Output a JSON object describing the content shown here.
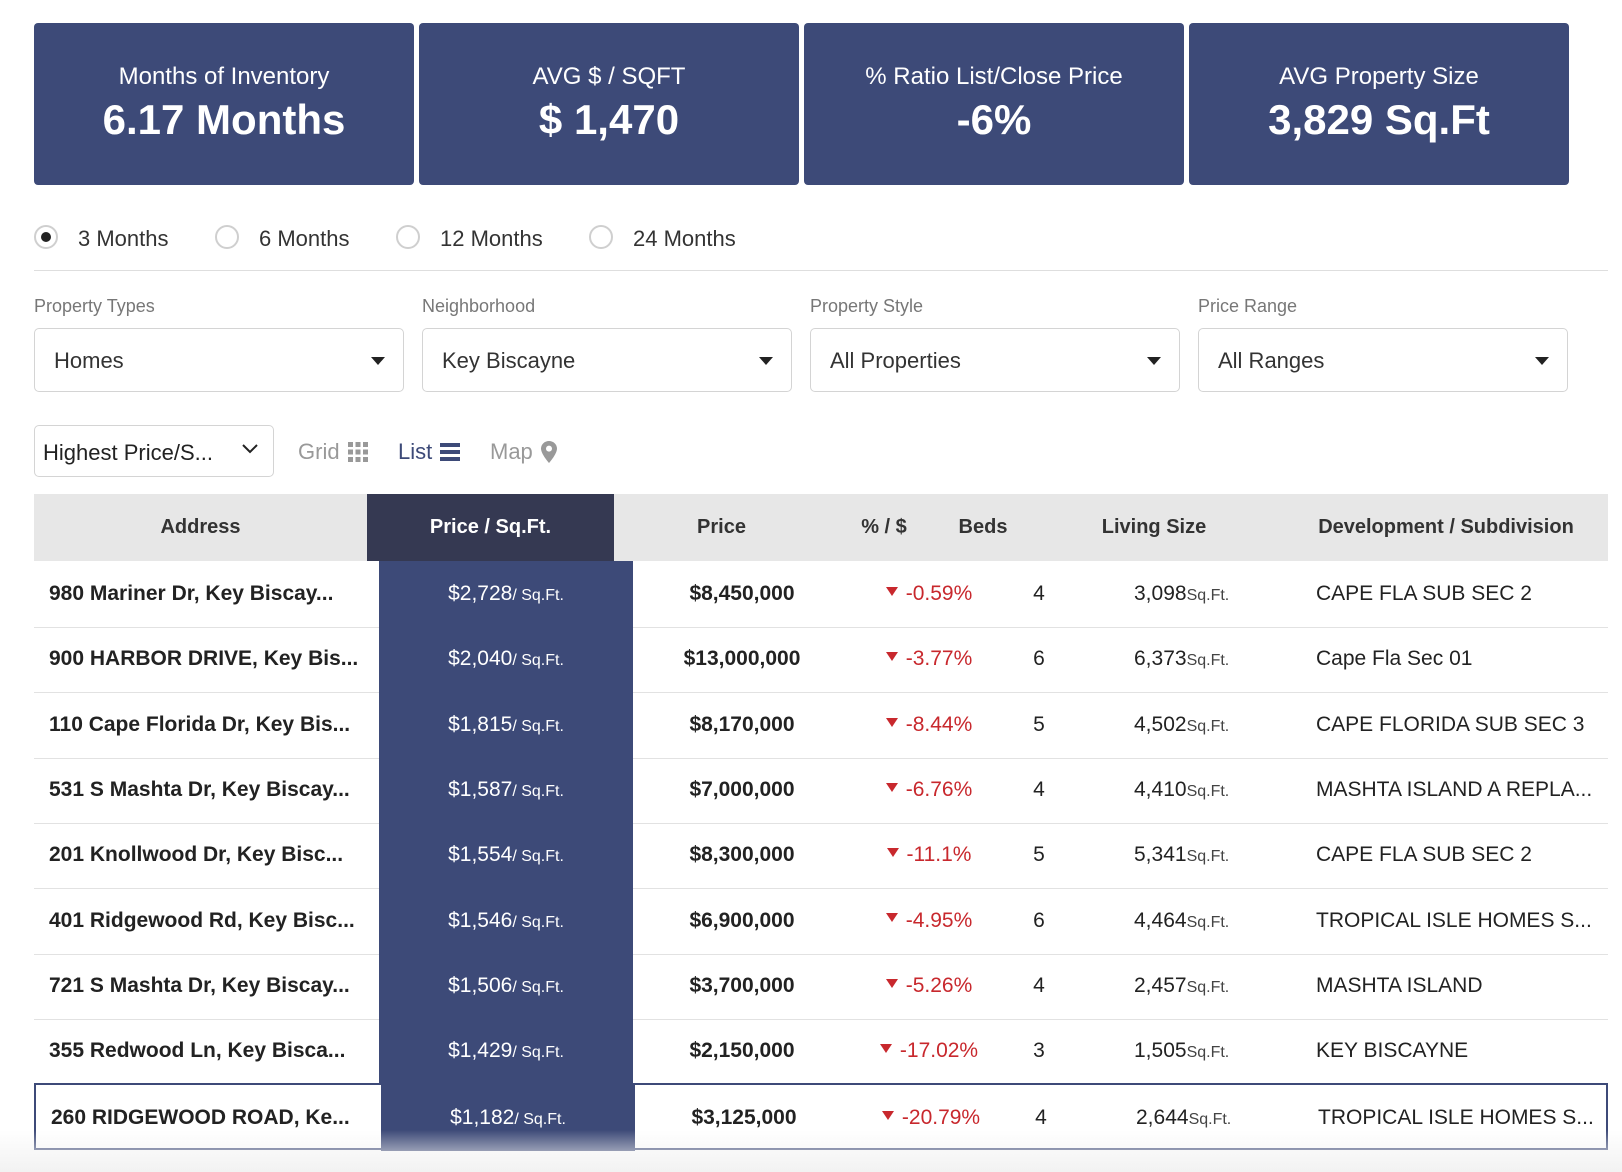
{
  "stats": [
    {
      "label": "Months of Inventory",
      "value": "6.17 Months"
    },
    {
      "label": "AVG $ / SQFT",
      "value": "$ 1,470"
    },
    {
      "label": "% Ratio List/Close Price",
      "value": "-6%"
    },
    {
      "label": "AVG Property Size",
      "value": "3,829 Sq.Ft"
    }
  ],
  "periods": {
    "selected": "3 Months",
    "options": [
      "3 Months",
      "6 Months",
      "12 Months",
      "24 Months"
    ]
  },
  "filters": [
    {
      "label": "Property Types",
      "value": "Homes"
    },
    {
      "label": "Neighborhood",
      "value": "Key Biscayne"
    },
    {
      "label": "Property Style",
      "value": "All Properties"
    },
    {
      "label": "Price Range",
      "value": "All Ranges"
    }
  ],
  "sort": {
    "value": "Highest Price/S..."
  },
  "views": {
    "grid": "Grid",
    "list": "List",
    "map": "Map",
    "active": "List"
  },
  "table": {
    "headers": {
      "address": "Address",
      "price_sqft": "Price / Sq.Ft.",
      "price": "Price",
      "pct": "% / $",
      "beds": "Beds",
      "living": "Living Size",
      "dev": "Development / Subdivision"
    },
    "sqft_unit_pps": "/ Sq.Ft.",
    "sqft_unit_living": "Sq.Ft.",
    "rows": [
      {
        "address": "980 Mariner Dr, Key Biscay...",
        "pps": "$2,728",
        "price": "$8,450,000",
        "pct": "-0.59%",
        "beds": "4",
        "living": "3,098",
        "dev": "CAPE FLA SUB SEC 2"
      },
      {
        "address": "900 HARBOR DRIVE, Key Bis...",
        "pps": "$2,040",
        "price": "$13,000,000",
        "pct": "-3.77%",
        "beds": "6",
        "living": "6,373",
        "dev": "Cape Fla Sec 01"
      },
      {
        "address": "110 Cape Florida Dr, Key Bis...",
        "pps": "$1,815",
        "price": "$8,170,000",
        "pct": "-8.44%",
        "beds": "5",
        "living": "4,502",
        "dev": "CAPE FLORIDA SUB SEC 3"
      },
      {
        "address": "531 S Mashta Dr, Key Biscay...",
        "pps": "$1,587",
        "price": "$7,000,000",
        "pct": "-6.76%",
        "beds": "4",
        "living": "4,410",
        "dev": "MASHTA ISLAND A REPLA..."
      },
      {
        "address": "201 Knollwood Dr, Key Bisc...",
        "pps": "$1,554",
        "price": "$8,300,000",
        "pct": "-11.1%",
        "beds": "5",
        "living": "5,341",
        "dev": "CAPE FLA SUB SEC 2"
      },
      {
        "address": "401 Ridgewood Rd, Key Bisc...",
        "pps": "$1,546",
        "price": "$6,900,000",
        "pct": "-4.95%",
        "beds": "6",
        "living": "4,464",
        "dev": "TROPICAL ISLE HOMES S..."
      },
      {
        "address": "721 S Mashta Dr, Key Biscay...",
        "pps": "$1,506",
        "price": "$3,700,000",
        "pct": "-5.26%",
        "beds": "4",
        "living": "2,457",
        "dev": "MASHTA ISLAND"
      },
      {
        "address": "355 Redwood Ln, Key Bisca...",
        "pps": "$1,429",
        "price": "$2,150,000",
        "pct": "-17.02%",
        "beds": "3",
        "living": "1,505",
        "dev": "KEY BISCAYNE"
      },
      {
        "address": "260 RIDGEWOOD ROAD, Ke...",
        "pps": "$1,182",
        "price": "$3,125,000",
        "pct": "-20.79%",
        "beds": "4",
        "living": "2,644",
        "dev": "TROPICAL ISLE HOMES S..."
      }
    ]
  }
}
